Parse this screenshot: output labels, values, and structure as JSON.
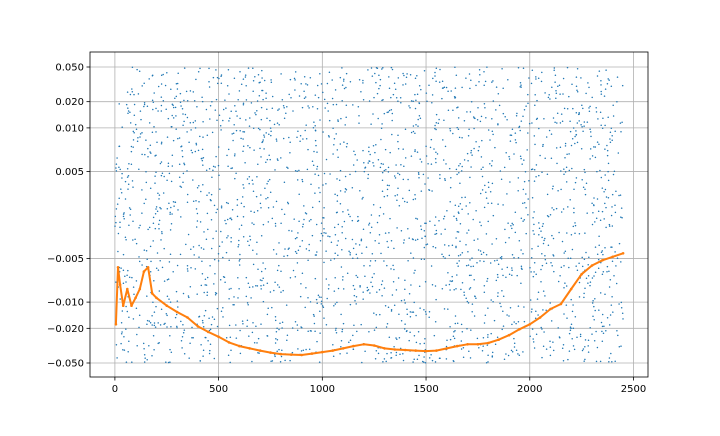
{
  "chart_data": {
    "type": "scatter",
    "title": "",
    "xlabel": "",
    "ylabel": "",
    "xlim": [
      -120,
      2570
    ],
    "ylim": [
      -0.05,
      0.05
    ],
    "y_scale": "symlog",
    "y_linthresh": 0.01,
    "grid": true,
    "x_ticks": [
      0,
      500,
      1000,
      1500,
      2000,
      2500
    ],
    "x_tick_labels": [
      "0",
      "500",
      "1000",
      "1500",
      "2000",
      "2500"
    ],
    "y_ticks": [
      -0.05,
      -0.02,
      -0.01,
      -0.005,
      0.005,
      0.01,
      0.02,
      0.05
    ],
    "y_tick_labels": [
      "−0.050",
      "−0.020",
      "−0.010",
      "−0.005",
      "0.005",
      "0.010",
      "0.020",
      "0.050"
    ],
    "series": [
      {
        "kind": "scatter",
        "color": "#1f77b4",
        "point_count": 2450,
        "x_range": [
          0,
          2450
        ],
        "distribution": "uniform random noise across the y range",
        "y_range": [
          -0.05,
          0.05
        ]
      },
      {
        "kind": "line",
        "color": "#ff7f0e",
        "x": [
          5,
          15,
          25,
          40,
          60,
          80,
          100,
          120,
          140,
          160,
          180,
          200,
          250,
          300,
          350,
          400,
          450,
          500,
          550,
          600,
          650,
          700,
          750,
          800,
          850,
          900,
          950,
          1000,
          1050,
          1100,
          1150,
          1200,
          1250,
          1300,
          1350,
          1400,
          1450,
          1500,
          1550,
          1600,
          1650,
          1700,
          1750,
          1800,
          1850,
          1900,
          1950,
          2000,
          2050,
          2100,
          2150,
          2200,
          2250,
          2300,
          2350,
          2400,
          2450
        ],
        "y": [
          -0.018,
          -0.006,
          -0.008,
          -0.011,
          -0.0085,
          -0.011,
          -0.0095,
          -0.0085,
          -0.0065,
          -0.006,
          -0.009,
          -0.0095,
          -0.011,
          -0.013,
          -0.015,
          -0.019,
          -0.022,
          -0.025,
          -0.029,
          -0.032,
          -0.034,
          -0.036,
          -0.038,
          -0.0395,
          -0.04,
          -0.0405,
          -0.039,
          -0.0375,
          -0.036,
          -0.034,
          -0.032,
          -0.0305,
          -0.0315,
          -0.034,
          -0.035,
          -0.0355,
          -0.036,
          -0.0365,
          -0.036,
          -0.034,
          -0.032,
          -0.0305,
          -0.0305,
          -0.0295,
          -0.027,
          -0.024,
          -0.0205,
          -0.018,
          -0.015,
          -0.012,
          -0.0105,
          -0.0085,
          -0.0068,
          -0.0058,
          -0.0052,
          -0.0048,
          -0.0044
        ]
      }
    ]
  }
}
